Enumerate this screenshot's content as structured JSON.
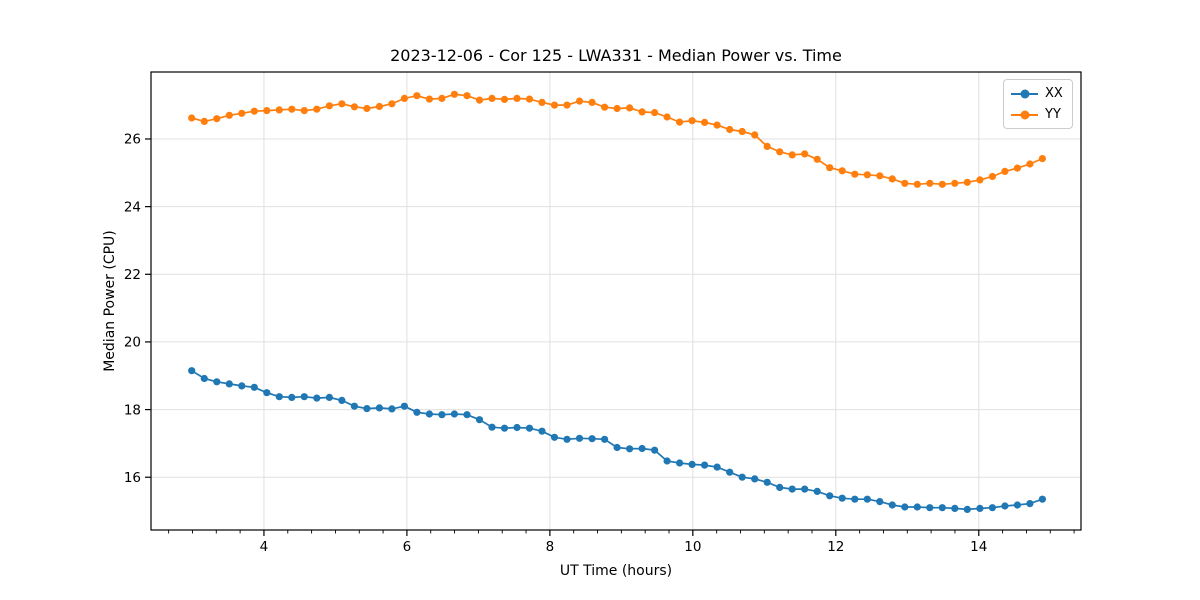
{
  "chart_data": {
    "type": "line",
    "title": "2023-12-06 - Cor 125 - LWA331 - Median Power vs. Time",
    "xlabel": "UT Time (hours)",
    "ylabel": "Median Power (CPU)",
    "xlim": [
      2.42,
      15.43
    ],
    "ylim": [
      14.44,
      27.98
    ],
    "xticks": [
      4,
      6,
      8,
      10,
      12,
      14
    ],
    "yticks": [
      16,
      18,
      20,
      22,
      24,
      26
    ],
    "x_minor_tick_step": 0.3333,
    "grid": true,
    "grid_color": "#e0e0e0",
    "legend_position": "upper right",
    "x": [
      2.99,
      3.165,
      3.34,
      3.515,
      3.69,
      3.865,
      4.04,
      4.215,
      4.39,
      4.565,
      4.74,
      4.915,
      5.09,
      5.265,
      5.44,
      5.615,
      5.79,
      5.965,
      6.14,
      6.315,
      6.49,
      6.665,
      6.84,
      7.015,
      7.19,
      7.365,
      7.54,
      7.715,
      7.89,
      8.065,
      8.24,
      8.415,
      8.59,
      8.765,
      8.94,
      9.115,
      9.29,
      9.465,
      9.64,
      9.815,
      9.99,
      10.165,
      10.34,
      10.515,
      10.69,
      10.865,
      11.04,
      11.215,
      11.39,
      11.565,
      11.74,
      11.915,
      12.09,
      12.265,
      12.44,
      12.615,
      12.79,
      12.965,
      13.14,
      13.315,
      13.49,
      13.665,
      13.84,
      14.015,
      14.19,
      14.365,
      14.54,
      14.715,
      14.89
    ],
    "series": [
      {
        "name": "XX",
        "color": "#1f77b4",
        "marker": "circle",
        "values": [
          19.15,
          18.92,
          18.82,
          18.76,
          18.7,
          18.66,
          18.5,
          18.38,
          18.36,
          18.38,
          18.34,
          18.36,
          18.27,
          18.1,
          18.03,
          18.05,
          18.02,
          18.1,
          17.92,
          17.87,
          17.85,
          17.87,
          17.85,
          17.7,
          17.48,
          17.45,
          17.47,
          17.45,
          17.36,
          17.18,
          17.12,
          17.15,
          17.14,
          17.12,
          16.88,
          16.84,
          16.85,
          16.8,
          16.48,
          16.42,
          16.38,
          16.36,
          16.3,
          16.15,
          16.0,
          15.95,
          15.85,
          15.7,
          15.65,
          15.65,
          15.58,
          15.45,
          15.38,
          15.35,
          15.35,
          15.28,
          15.18,
          15.12,
          15.12,
          15.1,
          15.1,
          15.08,
          15.05,
          15.08,
          15.1,
          15.15,
          15.18,
          15.22,
          15.35
        ]
      },
      {
        "name": "YY",
        "color": "#ff7f0e",
        "marker": "circle",
        "values": [
          26.62,
          26.52,
          26.6,
          26.7,
          26.76,
          26.82,
          26.84,
          26.86,
          26.88,
          26.84,
          26.88,
          26.98,
          27.04,
          26.95,
          26.9,
          26.96,
          27.04,
          27.2,
          27.28,
          27.18,
          27.2,
          27.32,
          27.28,
          27.15,
          27.2,
          27.17,
          27.2,
          27.18,
          27.08,
          27.0,
          27.0,
          27.12,
          27.08,
          26.94,
          26.9,
          26.92,
          26.8,
          26.78,
          26.65,
          26.5,
          26.54,
          26.49,
          26.41,
          26.28,
          26.22,
          26.12,
          25.78,
          25.62,
          25.53,
          25.56,
          25.4,
          25.15,
          25.06,
          24.96,
          24.94,
          24.91,
          24.82,
          24.69,
          24.66,
          24.69,
          24.66,
          24.69,
          24.72,
          24.79,
          24.89,
          25.04,
          25.14,
          25.26,
          25.42
        ]
      }
    ]
  }
}
